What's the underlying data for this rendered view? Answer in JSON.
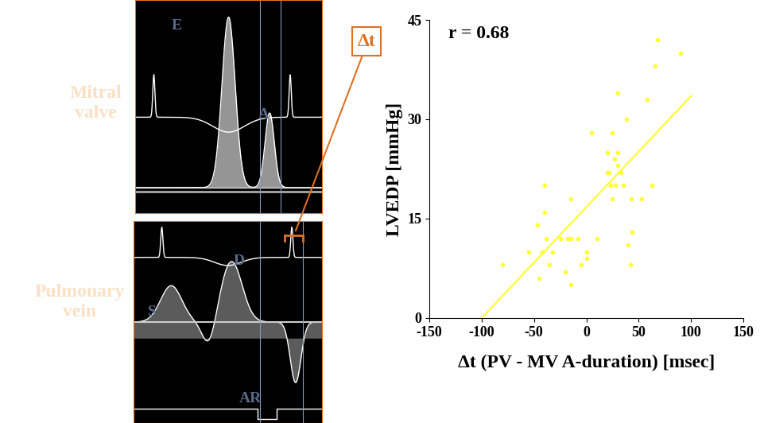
{
  "chart_data": {
    "type": "scatter",
    "x_label": "Δt (PV - MV A-duration) [msec]",
    "y_label": "LVEDP [mmHg]",
    "annotation": "r = 0.68",
    "color": "#ffff33",
    "x": [
      -80,
      -55,
      -47,
      -45,
      -42,
      -40,
      -40,
      -38,
      -35,
      -32,
      -25,
      -20,
      -18,
      -15,
      -15,
      -15,
      -8,
      -5,
      0,
      0,
      5,
      10,
      20,
      20,
      22,
      23,
      25,
      25,
      27,
      28,
      30,
      30,
      30,
      33,
      35,
      38,
      40,
      42,
      43,
      44,
      53,
      58,
      63,
      66,
      68,
      90
    ],
    "values": [
      8,
      10,
      14,
      6,
      10,
      16,
      20,
      12,
      8,
      10,
      12,
      7,
      12,
      5,
      12,
      18,
      12,
      8,
      9,
      10,
      28,
      12,
      22,
      25,
      22,
      20,
      18,
      28,
      24,
      20,
      25,
      23,
      34,
      22,
      20,
      30,
      11,
      8,
      18,
      13,
      18,
      33,
      20,
      38,
      42,
      40
    ],
    "fit_line": {
      "x": [
        -100,
        100
      ],
      "values": [
        0,
        33.5
      ]
    },
    "xlim": [
      -150,
      150
    ],
    "xticks": [
      -150,
      -100,
      -50,
      0,
      50,
      100,
      150
    ],
    "ylim": [
      0,
      45
    ],
    "yticks": [
      0,
      15,
      30,
      45
    ],
    "grid": false
  },
  "doppler_panels": [
    {
      "name": "Mitral valve",
      "labels": [
        "E",
        "A"
      ]
    },
    {
      "name": "Pulmonary vein",
      "labels": [
        "D",
        "S",
        "AR"
      ]
    }
  ],
  "delta_label": "Δt"
}
